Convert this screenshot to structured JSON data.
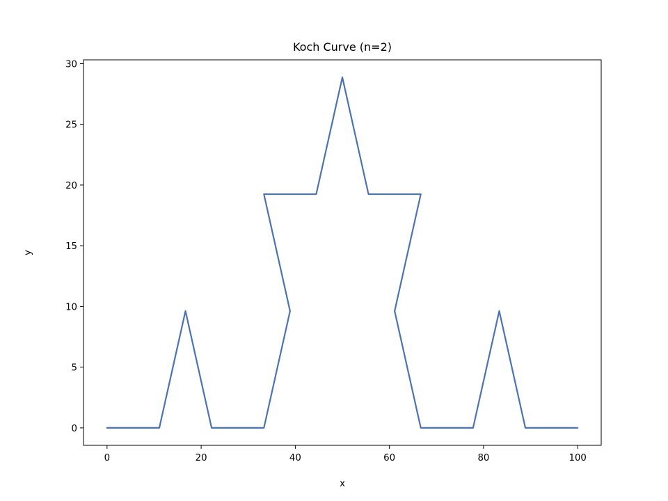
{
  "chart_data": {
    "type": "line",
    "title": "Koch Curve (n=2)",
    "xlabel": "x",
    "ylabel": "y",
    "xlim": [
      -5,
      105
    ],
    "ylim": [
      -1.44,
      30.31
    ],
    "xticks": [
      0,
      20,
      40,
      60,
      80,
      100
    ],
    "yticks": [
      0,
      5,
      10,
      15,
      20,
      25,
      30
    ],
    "grid": false,
    "line_color": "#4c72b0",
    "series": [
      {
        "x": [
          0,
          11.111,
          16.667,
          22.222,
          33.333,
          38.889,
          33.333,
          44.444,
          50,
          55.556,
          66.667,
          61.111,
          66.667,
          77.778,
          83.333,
          88.889,
          100
        ],
        "y": [
          0,
          0,
          9.623,
          0,
          0,
          9.623,
          19.245,
          19.245,
          28.868,
          19.245,
          19.245,
          9.623,
          0,
          0,
          9.623,
          0,
          0
        ]
      }
    ]
  }
}
